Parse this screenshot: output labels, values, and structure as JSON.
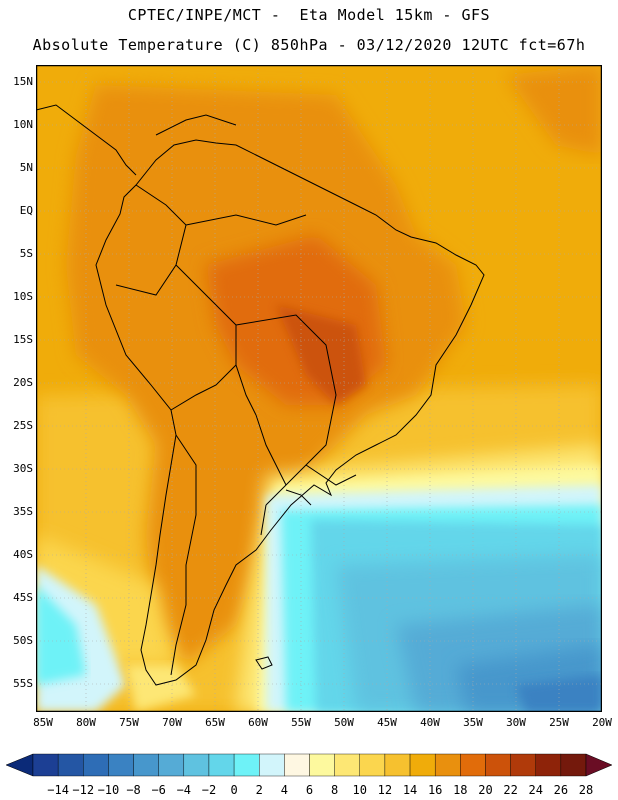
{
  "header": {
    "line1": "CPTEC/INPE/MCT -  Eta Model 15km - GFS",
    "line2": "Absolute Temperature (C) 850hPa - 03/12/2020 12UTC fct=67h"
  },
  "map": {
    "lat_labels": [
      "15N",
      "10N",
      "5N",
      "EQ",
      "5S",
      "10S",
      "15S",
      "20S",
      "25S",
      "30S",
      "35S",
      "40S",
      "45S",
      "50S",
      "55S"
    ],
    "lon_labels": [
      "85W",
      "80W",
      "75W",
      "70W",
      "65W",
      "60W",
      "55W",
      "50W",
      "45W",
      "40W",
      "35W",
      "30W",
      "25W",
      "20W"
    ]
  },
  "colorbar": {
    "labels": [
      "-14",
      "-12",
      "-10",
      "-8",
      "-6",
      "-4",
      "-2",
      "0",
      "2",
      "4",
      "6",
      "8",
      "10",
      "12",
      "14",
      "16",
      "18",
      "20",
      "22",
      "24",
      "26",
      "28"
    ],
    "colors": [
      "#1c3f94",
      "#2456a4",
      "#2e6db6",
      "#3a82c2",
      "#4797cc",
      "#55abd6",
      "#5fc2e0",
      "#63d6ea",
      "#6ef2f7",
      "#d2f5fb",
      "#fef7e2",
      "#fdf99e",
      "#fde774",
      "#fbd64e",
      "#f6c12f",
      "#f0ac0a",
      "#e9900e",
      "#e16c0a",
      "#cc520a",
      "#b03a0a",
      "#8e2309",
      "#74190c"
    ],
    "end_colors": {
      "low": "#0b2a78",
      "high": "#6a0d24"
    }
  }
}
